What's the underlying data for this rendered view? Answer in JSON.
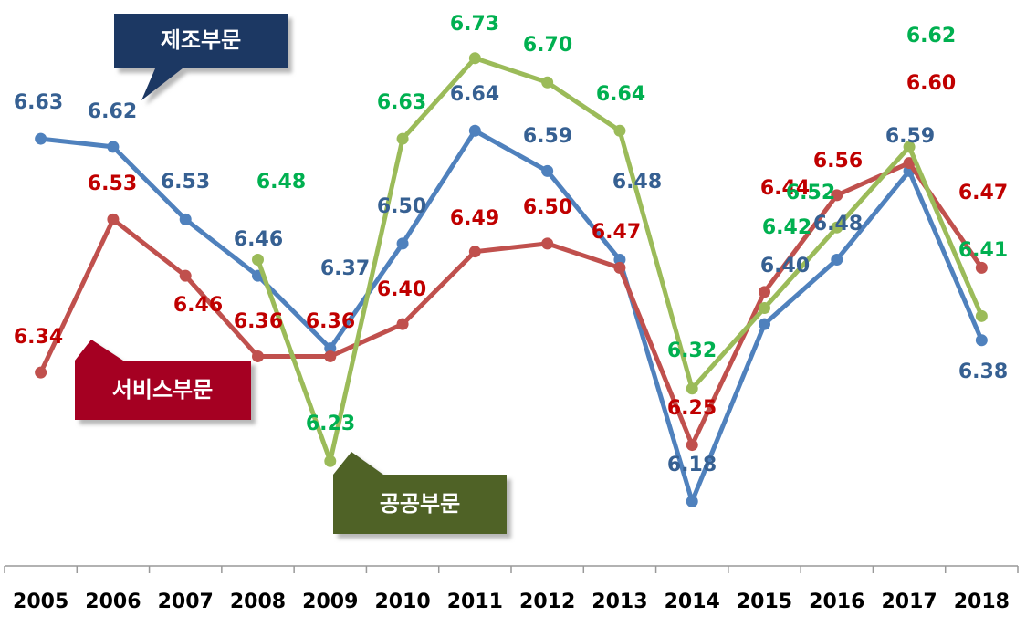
{
  "chart_data": {
    "type": "line",
    "categories": [
      "2005",
      "2006",
      "2007",
      "2008",
      "2009",
      "2010",
      "2011",
      "2012",
      "2013",
      "2014",
      "2015",
      "2016",
      "2017",
      "2018"
    ],
    "series": [
      {
        "name": "제조부문",
        "color": "#4f81bd",
        "values": [
          6.63,
          6.62,
          6.53,
          6.46,
          6.37,
          6.5,
          6.64,
          6.59,
          6.48,
          6.18,
          6.4,
          6.48,
          6.59,
          6.38
        ]
      },
      {
        "name": "서비스부문",
        "color": "#c0504d",
        "values": [
          6.34,
          6.53,
          6.46,
          6.36,
          6.36,
          6.4,
          6.49,
          6.5,
          6.47,
          6.25,
          6.44,
          6.56,
          6.6,
          6.47
        ]
      },
      {
        "name": "공공부문",
        "color": "#9bbb59",
        "values": [
          null,
          null,
          null,
          6.48,
          6.23,
          6.63,
          6.73,
          6.7,
          6.64,
          6.32,
          6.42,
          6.52,
          6.62,
          6.41
        ]
      }
    ],
    "ylim": [
      6.1,
      6.8
    ]
  }
}
